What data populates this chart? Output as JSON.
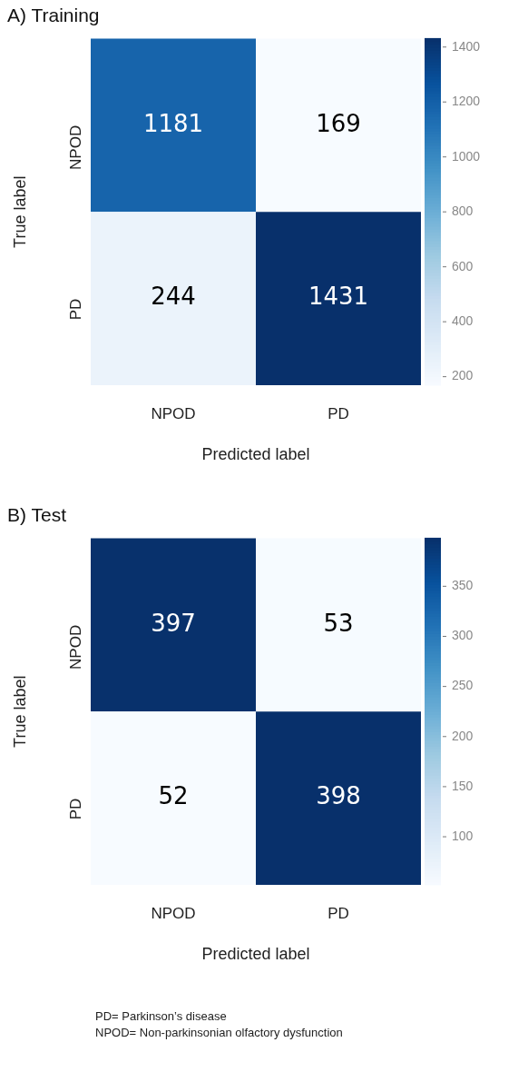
{
  "chart_data": [
    {
      "type": "heatmap",
      "title": "A) Training",
      "xlabel": "Predicted label",
      "ylabel": "True label",
      "categories": [
        "NPOD",
        "PD"
      ],
      "y_categories": [
        "NPOD",
        "PD"
      ],
      "cells": [
        [
          1181,
          169
        ],
        [
          244,
          1431
        ]
      ],
      "data_labels": true,
      "clim": [
        169,
        1431
      ],
      "cticks": [
        200,
        400,
        600,
        800,
        1000,
        1200,
        1400
      ]
    },
    {
      "type": "heatmap",
      "title": "B) Test",
      "xlabel": "Predicted label",
      "ylabel": "True label",
      "categories": [
        "NPOD",
        "PD"
      ],
      "y_categories": [
        "NPOD",
        "PD"
      ],
      "cells": [
        [
          397,
          53
        ],
        [
          52,
          398
        ]
      ],
      "data_labels": true,
      "clim": [
        52,
        398
      ],
      "cticks": [
        100,
        150,
        200,
        250,
        300,
        350
      ],
      "annotations": [
        "PD= Parkinson’s disease",
        "NPOD= Non-parkinsonian olfactory dysfunction"
      ]
    }
  ]
}
